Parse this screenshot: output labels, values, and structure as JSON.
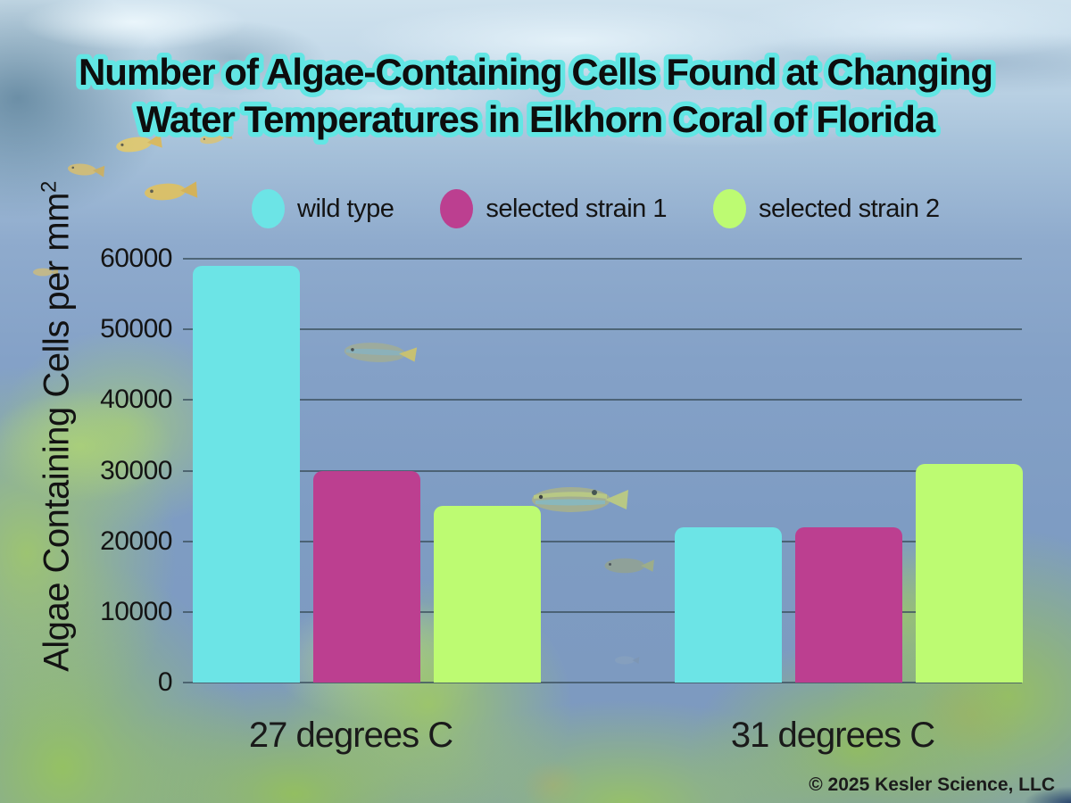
{
  "title": {
    "line1": "Number of Algae-Containing Cells Found at Changing",
    "line2": "Water Temperatures in Elkhorn Coral of Florida"
  },
  "legend": {
    "items": [
      {
        "label": "wild type",
        "color": "#6ce4e6"
      },
      {
        "label": "selected strain 1",
        "color": "#bc3f90"
      },
      {
        "label": "selected strain 2",
        "color": "#bdfb72"
      }
    ]
  },
  "axis": {
    "y_label_main": "Algae Containing Cells per mm",
    "y_label_sup": "2"
  },
  "chart_data": {
    "type": "bar",
    "categories": [
      "27 degrees C",
      "31 degrees C"
    ],
    "series": [
      {
        "name": "wild type",
        "color": "#6ce4e6",
        "values": [
          59000,
          22000
        ]
      },
      {
        "name": "selected strain 1",
        "color": "#bc3f90",
        "values": [
          30000,
          22000
        ]
      },
      {
        "name": "selected strain 2",
        "color": "#bdfb72",
        "values": [
          25000,
          31000
        ]
      }
    ],
    "title": "Number of Algae-Containing Cells Found at Changing Water Temperatures in Elkhorn Coral of Florida",
    "xlabel": "",
    "ylabel": "Algae Containing Cells per mm²",
    "yticks": [
      0,
      10000,
      20000,
      30000,
      40000,
      50000,
      60000
    ],
    "ylim": [
      0,
      60000
    ],
    "grid": true,
    "legend_position": "top"
  },
  "footer": {
    "copyright": "© 2025 Kesler Science, LLC"
  },
  "colors": {
    "bar_wild_type": "#6ce4e6",
    "bar_strain_1": "#bc3f90",
    "bar_strain_2": "#bdfb72",
    "title_outline": "#62e6e4",
    "title_text": "#0d0d0d",
    "gridline": "#3e5462",
    "text": "#141414"
  }
}
